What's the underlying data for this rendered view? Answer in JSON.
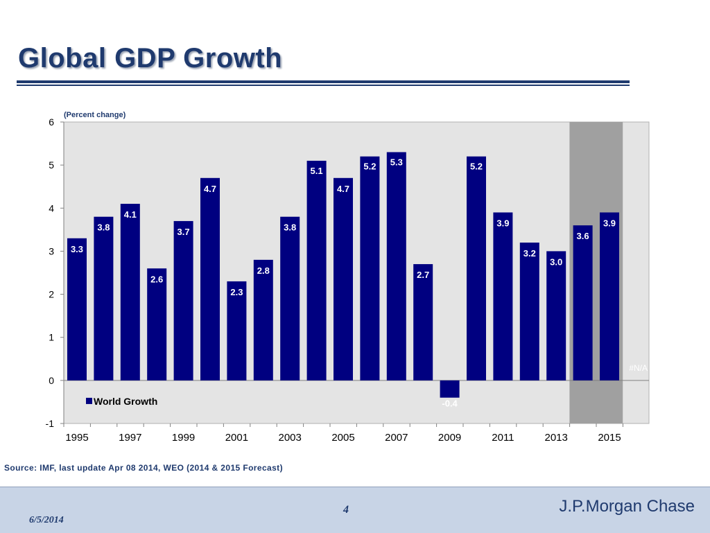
{
  "slide": {
    "title": "Global GDP Growth",
    "source": "Source: IMF, last update Apr 08 2014, WEO (2014 & 2015 Forecast)",
    "footer": {
      "date": "6/5/2014",
      "page": "4",
      "brand": "J.P.Morgan Chase"
    }
  },
  "colors": {
    "bar": "#000080",
    "forecast_shade": "#a0a0a0",
    "plot_bg": "#e4e4e4",
    "title": "#1f3a6e"
  },
  "chart_data": {
    "type": "bar",
    "subtitle": "(Percent change)",
    "categories": [
      "1995",
      "1996",
      "1997",
      "1998",
      "1999",
      "2000",
      "2001",
      "2002",
      "2003",
      "2004",
      "2005",
      "2006",
      "2007",
      "2008",
      "2009",
      "2010",
      "2011",
      "2012",
      "2013",
      "2014",
      "2015"
    ],
    "tick_labels": [
      "1995",
      "1997",
      "1999",
      "2001",
      "2003",
      "2005",
      "2007",
      "2009",
      "2011",
      "2013",
      "2015"
    ],
    "series": [
      {
        "name": "World Growth",
        "values": [
          3.3,
          3.8,
          4.1,
          2.6,
          3.7,
          4.7,
          2.3,
          2.8,
          3.8,
          5.1,
          4.7,
          5.2,
          5.3,
          2.7,
          -0.4,
          5.2,
          3.9,
          3.2,
          3.0,
          3.6,
          3.9
        ]
      }
    ],
    "data_labels": [
      "3.3",
      "3.8",
      "4.1",
      "2.6",
      "3.7",
      "4.7",
      "2.3",
      "2.8",
      "3.8",
      "5.1",
      "4.7",
      "5.2",
      "5.3",
      "2.7",
      "-0.4",
      "5.2",
      "3.9",
      "3.2",
      "3.0",
      "3.6",
      "3.9"
    ],
    "ylim": [
      -1,
      6
    ],
    "yticks": [
      "-1",
      "0",
      "1",
      "2",
      "3",
      "4",
      "5",
      "6"
    ],
    "forecast_years": [
      "2014",
      "2015"
    ],
    "forecast_label": "#N/A",
    "legend_position": "bottom-left",
    "grid": false
  }
}
